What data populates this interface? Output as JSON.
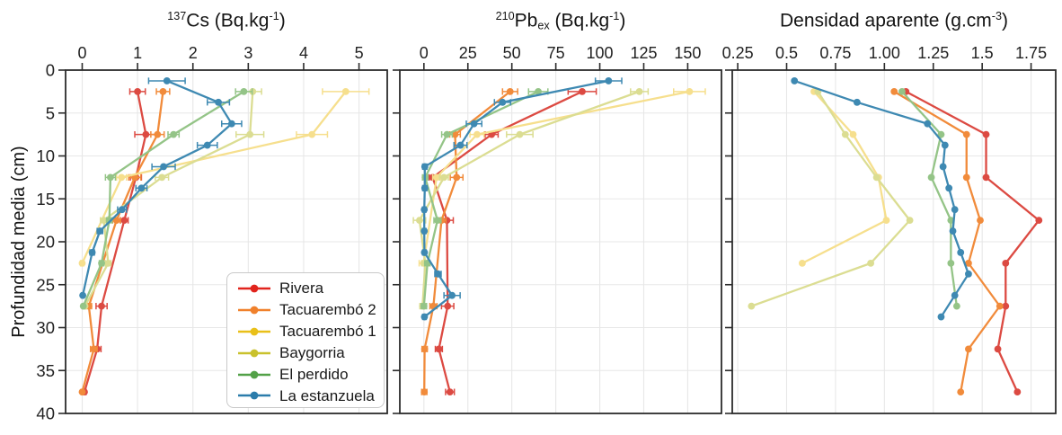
{
  "figure": {
    "background": "#ffffff"
  },
  "depth_axis": {
    "label": "Profundidad media (cm)",
    "ticks": [
      0,
      5,
      10,
      15,
      20,
      25,
      30,
      35,
      40
    ],
    "range": [
      0,
      40
    ]
  },
  "series_colors": {
    "rivera": {
      "legend": "#e1241d",
      "plot": "#dc4a42"
    },
    "tacuarembo2": {
      "legend": "#f0812c",
      "plot": "#f18b3b"
    },
    "tacuarembo1": {
      "legend": "#e9c019",
      "plot": "#f6df8d"
    },
    "baygorria": {
      "legend": "#c9c12d",
      "plot": "#dbdd92"
    },
    "elperdido": {
      "legend": "#53a148",
      "plot": "#94c487"
    },
    "laestanzuela": {
      "legend": "#2b7cab",
      "plot": "#3e89b2"
    }
  },
  "legend": {
    "entries": [
      {
        "key": "rivera",
        "label": "Rivera"
      },
      {
        "key": "tacuarembo2",
        "label": "Tacuarembó 2"
      },
      {
        "key": "tacuarembo1",
        "label": "Tacuarembó 1"
      },
      {
        "key": "baygorria",
        "label": "Baygorria"
      },
      {
        "key": "elperdido",
        "label": "El perdido"
      },
      {
        "key": "laestanzuela",
        "label": "La estanzuela"
      }
    ]
  },
  "chart_data": [
    {
      "id": "cs137",
      "type": "line",
      "orientation": "depth-profile",
      "title_text": "137Cs (Bq.kg-1)",
      "title_segments": [
        {
          "t": "137",
          "s": "sup"
        },
        {
          "t": "Cs (Bq.kg",
          "s": "n"
        },
        {
          "t": "-1",
          "s": "sup"
        },
        {
          "t": ")",
          "s": "n"
        }
      ],
      "xlim": [
        -0.3,
        5.51
      ],
      "x_ticks": [
        {
          "v": 0,
          "l": "0"
        },
        {
          "v": 1,
          "l": "1"
        },
        {
          "v": 2,
          "l": "2"
        },
        {
          "v": 3,
          "l": "3"
        },
        {
          "v": 4,
          "l": "4"
        },
        {
          "v": 5,
          "l": "5"
        }
      ],
      "grid": true,
      "y_tick_labels": true,
      "has_error_bars": true,
      "series": [
        {
          "key": "rivera",
          "name": "Rivera",
          "points": [
            [
              2.5,
              1.0,
              0.14
            ],
            [
              7.5,
              1.15,
              0.2
            ],
            [
              12.5,
              0.97,
              0.1
            ],
            [
              17.5,
              0.76,
              0.07
            ],
            [
              27.5,
              0.35,
              0.1
            ],
            [
              32.5,
              0.27,
              0.07
            ],
            [
              37.5,
              0.04,
              0.03
            ]
          ]
        },
        {
          "key": "tacuarembo2",
          "name": "Tacuarembó 2",
          "points": [
            [
              2.5,
              1.46,
              0.12
            ],
            [
              7.5,
              1.36,
              0.12
            ],
            [
              12.5,
              0.95,
              0.11
            ],
            [
              17.5,
              0.62,
              0.07
            ],
            [
              27.5,
              0.12,
              0.05
            ],
            [
              32.5,
              0.21,
              0.06
            ],
            [
              37.5,
              0.0,
              0.02
            ]
          ]
        },
        {
          "key": "tacuarembo1",
          "name": "Tacuarembó 1",
          "points": [
            [
              2.5,
              4.76,
              0.42
            ],
            [
              7.5,
              4.15,
              0.28
            ],
            [
              12.5,
              0.71,
              0.09
            ],
            [
              22.5,
              0.0,
              0.03
            ]
          ]
        },
        {
          "key": "baygorria",
          "name": "Baygorria",
          "points": [
            [
              2.5,
              3.08,
              0.16
            ],
            [
              7.5,
              3.03,
              0.25
            ],
            [
              12.5,
              1.44,
              0.12
            ],
            [
              17.5,
              0.39,
              0.06
            ],
            [
              22.5,
              0.47,
              0.05
            ],
            [
              27.5,
              0.05,
              0.03
            ]
          ]
        },
        {
          "key": "elperdido",
          "name": "El perdido",
          "points": [
            [
              2.5,
              2.92,
              0.15
            ],
            [
              7.5,
              1.65,
              0.1
            ],
            [
              12.5,
              0.51,
              0.09
            ],
            [
              17.5,
              0.49,
              0.05
            ],
            [
              22.5,
              0.35,
              0.04
            ],
            [
              27.5,
              0.02,
              0.02
            ]
          ]
        },
        {
          "key": "laestanzuela",
          "name": "La estanzuela",
          "points": [
            [
              1.25,
              1.53,
              0.33
            ],
            [
              3.75,
              2.46,
              0.2
            ],
            [
              6.25,
              2.7,
              0.18
            ],
            [
              8.75,
              2.26,
              0.18
            ],
            [
              11.25,
              1.47,
              0.21
            ],
            [
              13.75,
              1.07,
              0.1
            ],
            [
              16.25,
              0.72,
              0.08
            ],
            [
              18.75,
              0.32,
              0.05
            ],
            [
              21.25,
              0.18,
              0.04
            ],
            [
              26.25,
              0.01,
              0.02
            ]
          ]
        }
      ]
    },
    {
      "id": "pb210ex",
      "type": "line",
      "orientation": "depth-profile",
      "title_text": "210Pbex (Bq.kg-1)",
      "title_segments": [
        {
          "t": "210",
          "s": "sup"
        },
        {
          "t": "Pb",
          "s": "n"
        },
        {
          "t": "ex",
          "s": "sub"
        },
        {
          "t": " (Bq.kg",
          "s": "n"
        },
        {
          "t": "-1",
          "s": "sup"
        },
        {
          "t": ")",
          "s": "n"
        }
      ],
      "xlim": [
        -13.7,
        169.2
      ],
      "x_ticks": [
        {
          "v": 0,
          "l": "0"
        },
        {
          "v": 25,
          "l": "25"
        },
        {
          "v": 50,
          "l": "50"
        },
        {
          "v": 75,
          "l": "75"
        },
        {
          "v": 100,
          "l": "100"
        },
        {
          "v": 125,
          "l": "125"
        },
        {
          "v": 150,
          "l": "150"
        }
      ],
      "grid": true,
      "y_tick_labels": false,
      "has_error_bars": true,
      "series": [
        {
          "key": "rivera",
          "name": "Rivera",
          "points": [
            [
              2.5,
              90,
              8
            ],
            [
              7.5,
              38.5,
              3.7
            ],
            [
              12.5,
              5,
              2
            ],
            [
              17.5,
              13.1,
              3.6
            ],
            [
              27.5,
              13.5,
              3.5
            ],
            [
              32.5,
              8.5,
              2
            ],
            [
              37.5,
              14.8,
              2.5
            ]
          ]
        },
        {
          "key": "tacuarembo2",
          "name": "Tacuarembó 2",
          "points": [
            [
              2.5,
              49,
              4.3
            ],
            [
              7.5,
              17.7,
              3
            ],
            [
              12.5,
              18.6,
              3.6
            ],
            [
              17.5,
              10,
              2.5
            ],
            [
              27.5,
              5.4,
              2
            ],
            [
              32.5,
              0.4,
              1.5
            ],
            [
              37.5,
              0.2,
              1.5
            ]
          ]
        },
        {
          "key": "tacuarembo1",
          "name": "Tacuarembó 1",
          "points": [
            [
              2.5,
              151,
              9
            ],
            [
              7.5,
              30.2,
              4
            ],
            [
              12.5,
              7.2,
              2.2
            ],
            [
              22.5,
              -0.2,
              2.5
            ]
          ]
        },
        {
          "key": "baygorria",
          "name": "Baygorria",
          "points": [
            [
              2.5,
              122.5,
              5
            ],
            [
              7.5,
              54.5,
              7.5
            ],
            [
              12.5,
              11.4,
              2.5
            ],
            [
              17.5,
              -2.5,
              3.5
            ],
            [
              22.5,
              0.8,
              2
            ],
            [
              27.5,
              -0.8,
              1.5
            ]
          ]
        },
        {
          "key": "elperdido",
          "name": "El perdido",
          "points": [
            [
              2.5,
              65,
              5.5
            ],
            [
              7.5,
              13.1,
              3
            ],
            [
              12.5,
              0.7,
              1.5
            ],
            [
              17.5,
              7.7,
              2
            ],
            [
              22.5,
              2.0,
              1.5
            ],
            [
              27.5,
              0.0,
              1.5
            ]
          ]
        },
        {
          "key": "laestanzuela",
          "name": "La estanzuela",
          "points": [
            [
              1.25,
              105,
              7.5
            ],
            [
              3.75,
              44.7,
              4.6
            ],
            [
              6.25,
              28.5,
              4.4
            ],
            [
              8.75,
              20.8,
              3.7
            ],
            [
              11.25,
              0.5,
              1.2
            ],
            [
              13.75,
              0.5,
              1.2
            ],
            [
              16.25,
              0.2,
              1.0
            ],
            [
              18.75,
              0.2,
              1.0
            ],
            [
              21.25,
              0.3,
              1.0
            ],
            [
              23.75,
              8.0,
              1.8
            ],
            [
              26.25,
              16.0,
              4.6
            ],
            [
              28.75,
              0.3,
              1.0
            ]
          ]
        }
      ]
    },
    {
      "id": "densidad",
      "type": "line",
      "orientation": "depth-profile",
      "title_text": "Densidad aparente (g.cm-3)",
      "title_segments": [
        {
          "t": "Densidad aparente (g.cm",
          "s": "n"
        },
        {
          "t": "-3",
          "s": "sup"
        },
        {
          "t": ")",
          "s": "n"
        }
      ],
      "xlim": [
        0.222,
        1.876
      ],
      "x_ticks": [
        {
          "v": 0.25,
          "l": "0.25"
        },
        {
          "v": 0.5,
          "l": "0.5"
        },
        {
          "v": 0.75,
          "l": "0.75"
        },
        {
          "v": 1.0,
          "l": "1.00"
        },
        {
          "v": 1.25,
          "l": "1.25"
        },
        {
          "v": 1.5,
          "l": "1.5"
        },
        {
          "v": 1.75,
          "l": "1.75"
        }
      ],
      "grid": true,
      "y_tick_labels": false,
      "has_error_bars": false,
      "series": [
        {
          "key": "rivera",
          "name": "Rivera",
          "points": [
            [
              2.5,
              1.11
            ],
            [
              7.5,
              1.52
            ],
            [
              12.5,
              1.52
            ],
            [
              17.5,
              1.79
            ],
            [
              22.5,
              1.62
            ],
            [
              27.5,
              1.62
            ],
            [
              32.5,
              1.58
            ],
            [
              37.5,
              1.68
            ]
          ]
        },
        {
          "key": "tacuarembo2",
          "name": "Tacuarembó 2",
          "points": [
            [
              2.5,
              1.05
            ],
            [
              7.5,
              1.42
            ],
            [
              12.5,
              1.42
            ],
            [
              17.5,
              1.49
            ],
            [
              22.5,
              1.43
            ],
            [
              27.5,
              1.59
            ],
            [
              32.5,
              1.43
            ],
            [
              37.5,
              1.39
            ]
          ]
        },
        {
          "key": "tacuarembo1",
          "name": "Tacuarembó 1",
          "points": [
            [
              2.5,
              0.64
            ],
            [
              7.5,
              0.84
            ],
            [
              12.5,
              0.97
            ],
            [
              17.5,
              1.01
            ],
            [
              22.5,
              0.58
            ]
          ]
        },
        {
          "key": "baygorria",
          "name": "Baygorria",
          "points": [
            [
              2.5,
              0.66
            ],
            [
              7.5,
              0.8
            ],
            [
              12.5,
              0.96
            ],
            [
              17.5,
              1.13
            ],
            [
              22.5,
              0.93
            ],
            [
              27.5,
              0.32
            ]
          ]
        },
        {
          "key": "elperdido",
          "name": "El perdido",
          "points": [
            [
              2.5,
              1.09
            ],
            [
              7.5,
              1.29
            ],
            [
              12.5,
              1.24
            ],
            [
              17.5,
              1.34
            ],
            [
              22.5,
              1.34
            ],
            [
              27.5,
              1.37
            ]
          ]
        },
        {
          "key": "laestanzuela",
          "name": "La estanzuela",
          "points": [
            [
              1.25,
              0.54
            ],
            [
              3.75,
              0.86
            ],
            [
              6.25,
              1.22
            ],
            [
              8.75,
              1.31
            ],
            [
              11.25,
              1.3
            ],
            [
              13.75,
              1.33
            ],
            [
              16.25,
              1.36
            ],
            [
              18.75,
              1.35
            ],
            [
              21.25,
              1.39
            ],
            [
              23.75,
              1.43
            ],
            [
              26.25,
              1.36
            ],
            [
              28.75,
              1.29
            ]
          ]
        }
      ]
    }
  ]
}
